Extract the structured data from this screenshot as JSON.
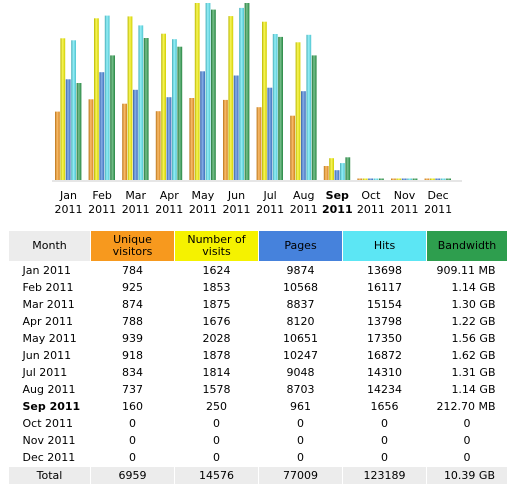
{
  "colors": {
    "unique": "#f7991e",
    "visits": "#f5f200",
    "pages": "#4682dc",
    "hits": "#5ce6f4",
    "bandwidth": "#2e9e4e",
    "header_month": "#ececec"
  },
  "table": {
    "headers": {
      "month": "Month",
      "unique": "Unique visitors",
      "visits": "Number of visits",
      "pages": "Pages",
      "hits": "Hits",
      "bandwidth": "Bandwidth"
    },
    "rows": [
      {
        "month": "Jan 2011",
        "unique": "784",
        "visits": "1624",
        "pages": "9874",
        "hits": "13698",
        "bandwidth": "909.11 MB"
      },
      {
        "month": "Feb 2011",
        "unique": "925",
        "visits": "1853",
        "pages": "10568",
        "hits": "16117",
        "bandwidth": "1.14 GB"
      },
      {
        "month": "Mar 2011",
        "unique": "874",
        "visits": "1875",
        "pages": "8837",
        "hits": "15154",
        "bandwidth": "1.30 GB"
      },
      {
        "month": "Apr 2011",
        "unique": "788",
        "visits": "1676",
        "pages": "8120",
        "hits": "13798",
        "bandwidth": "1.22 GB"
      },
      {
        "month": "May 2011",
        "unique": "939",
        "visits": "2028",
        "pages": "10651",
        "hits": "17350",
        "bandwidth": "1.56 GB"
      },
      {
        "month": "Jun 2011",
        "unique": "918",
        "visits": "1878",
        "pages": "10247",
        "hits": "16872",
        "bandwidth": "1.62 GB"
      },
      {
        "month": "Jul 2011",
        "unique": "834",
        "visits": "1814",
        "pages": "9048",
        "hits": "14310",
        "bandwidth": "1.31 GB"
      },
      {
        "month": "Aug 2011",
        "unique": "737",
        "visits": "1578",
        "pages": "8703",
        "hits": "14234",
        "bandwidth": "1.14 GB"
      },
      {
        "month": "Sep 2011",
        "unique": "160",
        "visits": "250",
        "pages": "961",
        "hits": "1656",
        "bandwidth": "212.70 MB"
      },
      {
        "month": "Oct 2011",
        "unique": "0",
        "visits": "0",
        "pages": "0",
        "hits": "0",
        "bandwidth": "0"
      },
      {
        "month": "Nov 2011",
        "unique": "0",
        "visits": "0",
        "pages": "0",
        "hits": "0",
        "bandwidth": "0"
      },
      {
        "month": "Dec 2011",
        "unique": "0",
        "visits": "0",
        "pages": "0",
        "hits": "0",
        "bandwidth": "0"
      }
    ],
    "total": {
      "month": "Total",
      "unique": "6959",
      "visits": "14576",
      "pages": "77009",
      "hits": "123189",
      "bandwidth": "10.39 GB"
    }
  },
  "chart_data": {
    "type": "bar",
    "current_month": "Sep",
    "categories": [
      "Jan",
      "Feb",
      "Mar",
      "Apr",
      "May",
      "Jun",
      "Jul",
      "Aug",
      "Sep",
      "Oct",
      "Nov",
      "Dec"
    ],
    "year": "2011",
    "series": [
      {
        "key": "unique",
        "color": "#f7991e",
        "values": [
          784,
          925,
          874,
          788,
          939,
          918,
          834,
          737,
          160,
          0,
          0,
          0
        ]
      },
      {
        "key": "visits",
        "color": "#f5f200",
        "values": [
          1624,
          1853,
          1875,
          1676,
          2028,
          1878,
          1814,
          1578,
          250,
          0,
          0,
          0
        ]
      },
      {
        "key": "pages",
        "color": "#4682dc",
        "values": [
          9874,
          10568,
          8837,
          8120,
          10651,
          10247,
          9048,
          8703,
          961,
          0,
          0,
          0
        ]
      },
      {
        "key": "hits",
        "color": "#5ce6f4",
        "values": [
          13698,
          16117,
          15154,
          13798,
          17350,
          16872,
          14310,
          14234,
          1656,
          0,
          0,
          0
        ]
      },
      {
        "key": "bandwidth",
        "color": "#2e9e4e",
        "values": [
          0.888,
          1.14,
          1.3,
          1.22,
          1.56,
          1.62,
          1.31,
          1.14,
          0.208,
          0,
          0,
          0
        ]
      }
    ],
    "scale_groups": {
      "visitors": [
        "unique",
        "visits"
      ],
      "pages": [
        "pages",
        "hits"
      ],
      "bandwidth": [
        "bandwidth"
      ]
    }
  }
}
